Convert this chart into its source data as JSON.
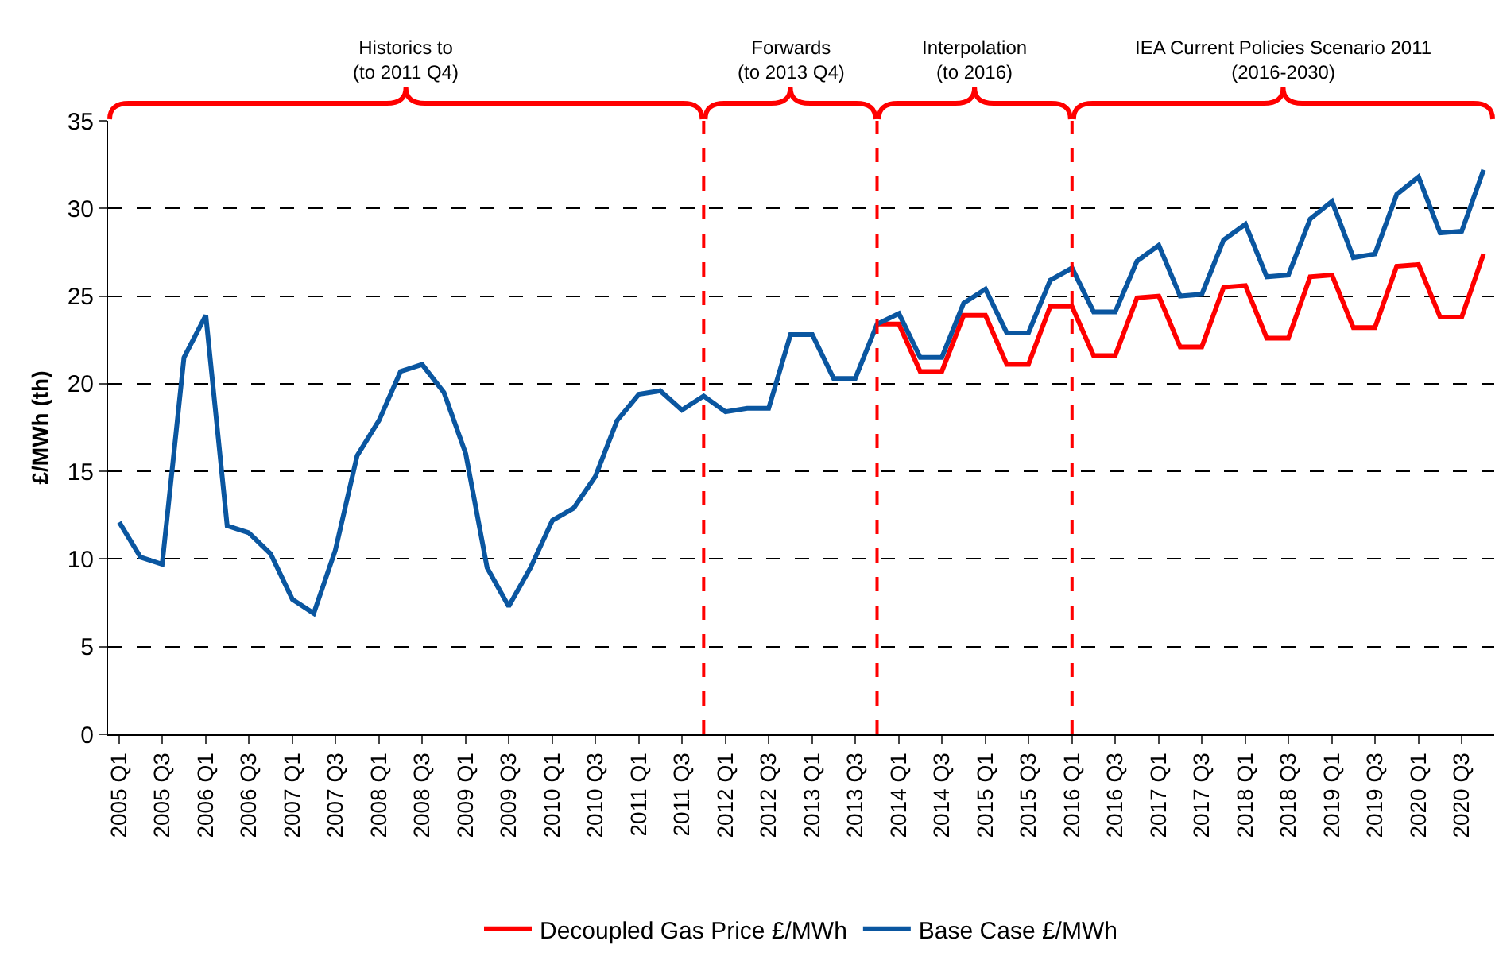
{
  "chart_data": {
    "type": "line",
    "ylabel": "£/MWh (th)",
    "x": [
      "2005-01",
      "2005-04",
      "2005-07",
      "2005-10",
      "2006-01",
      "2006-04",
      "2006-07",
      "2006-10",
      "2007-01",
      "2007-04",
      "2007-07",
      "2007-10",
      "2008-01",
      "2008-04",
      "2008-07",
      "2008-10",
      "2009-01",
      "2009-04",
      "2009-07",
      "2009-10",
      "2010-01",
      "2010-04",
      "2010-07",
      "2010-10",
      "2011-01",
      "2011-04",
      "2011-07",
      "2011-10",
      "2012-01",
      "2012-04",
      "2012-07",
      "2012-10",
      "2013-01",
      "2013-04",
      "2013-07",
      "2013-10",
      "2014-01",
      "2014-04",
      "2014-07",
      "2014-10",
      "2015-01",
      "2015-04",
      "2015-07",
      "2015-10",
      "2016-01",
      "2016-04",
      "2016-07",
      "2016-10",
      "2017-01",
      "2017-04",
      "2017-07",
      "2017-10",
      "2018-01",
      "2018-04",
      "2018-07",
      "2018-10",
      "2019-01",
      "2019-04",
      "2019-07",
      "2019-10",
      "2020-01",
      "2020-04",
      "2020-07",
      "2020-10"
    ],
    "series": [
      {
        "name": "Decoupled Gas Price £/MWh",
        "color": "#ff0000",
        "values": [
          null,
          null,
          null,
          null,
          null,
          null,
          null,
          null,
          null,
          null,
          null,
          null,
          null,
          null,
          null,
          null,
          null,
          null,
          null,
          null,
          null,
          null,
          null,
          null,
          null,
          null,
          null,
          null,
          null,
          null,
          null,
          null,
          null,
          null,
          null,
          23.4,
          23.4,
          20.7,
          20.7,
          23.9,
          23.9,
          21.1,
          21.1,
          24.4,
          24.4,
          21.6,
          21.6,
          24.9,
          25.0,
          22.1,
          22.1,
          25.5,
          25.6,
          22.6,
          22.6,
          26.1,
          26.2,
          23.2,
          23.2,
          26.7,
          26.8,
          23.8,
          23.8,
          27.4
        ]
      },
      {
        "name": "Base Case £/MWh",
        "color": "#0a56a0",
        "values": [
          12.1,
          10.1,
          9.7,
          21.5,
          23.9,
          11.9,
          11.5,
          10.3,
          7.7,
          6.9,
          10.5,
          15.9,
          17.9,
          20.7,
          21.1,
          19.5,
          16.0,
          9.5,
          7.3,
          9.5,
          12.2,
          12.9,
          14.7,
          17.9,
          19.4,
          19.6,
          18.5,
          19.3,
          18.4,
          18.6,
          18.6,
          22.8,
          22.8,
          20.3,
          20.3,
          23.4,
          24.0,
          21.5,
          21.5,
          24.6,
          25.4,
          22.9,
          22.9,
          25.9,
          26.6,
          24.1,
          24.1,
          27.0,
          27.9,
          25.0,
          25.1,
          28.2,
          29.1,
          26.1,
          26.2,
          29.4,
          30.4,
          27.2,
          27.4,
          30.8,
          31.8,
          28.6,
          28.7,
          32.2
        ]
      }
    ],
    "xlim": [
      "2004-11-15",
      "2020-11-15"
    ],
    "xticks": [
      {
        "value": "2005-01",
        "label": "2005 Q1"
      },
      {
        "value": "2005-07",
        "label": "2005 Q3"
      },
      {
        "value": "2006-01",
        "label": "2006 Q1"
      },
      {
        "value": "2006-07",
        "label": "2006 Q3"
      },
      {
        "value": "2007-01",
        "label": "2007 Q1"
      },
      {
        "value": "2007-07",
        "label": "2007 Q3"
      },
      {
        "value": "2008-01",
        "label": "2008 Q1"
      },
      {
        "value": "2008-07",
        "label": "2008 Q3"
      },
      {
        "value": "2009-01",
        "label": "2009 Q1"
      },
      {
        "value": "2009-07",
        "label": "2009 Q3"
      },
      {
        "value": "2010-01",
        "label": "2010 Q1"
      },
      {
        "value": "2010-07",
        "label": "2010 Q3"
      },
      {
        "value": "2011-01",
        "label": "2011 Q1"
      },
      {
        "value": "2011-07",
        "label": "2011 Q3"
      },
      {
        "value": "2012-01",
        "label": "2012 Q1"
      },
      {
        "value": "2012-07",
        "label": "2012 Q3"
      },
      {
        "value": "2013-01",
        "label": "2013 Q1"
      },
      {
        "value": "2013-07",
        "label": "2013 Q3"
      },
      {
        "value": "2014-01",
        "label": "2014 Q1"
      },
      {
        "value": "2014-07",
        "label": "2014 Q3"
      },
      {
        "value": "2015-01",
        "label": "2015 Q1"
      },
      {
        "value": "2015-07",
        "label": "2015 Q3"
      },
      {
        "value": "2016-01",
        "label": "2016 Q1"
      },
      {
        "value": "2016-07",
        "label": "2016 Q3"
      },
      {
        "value": "2017-01",
        "label": "2017 Q1"
      },
      {
        "value": "2017-07",
        "label": "2017 Q3"
      },
      {
        "value": "2018-01",
        "label": "2018 Q1"
      },
      {
        "value": "2018-07",
        "label": "2018 Q3"
      },
      {
        "value": "2019-01",
        "label": "2019 Q1"
      },
      {
        "value": "2019-07",
        "label": "2019 Q3"
      },
      {
        "value": "2020-01",
        "label": "2020 Q1"
      },
      {
        "value": "2020-07",
        "label": "2020 Q3"
      }
    ],
    "ylim": [
      0,
      35
    ],
    "yticks": [
      0,
      5,
      10,
      15,
      20,
      25,
      30,
      35
    ],
    "grid": "y",
    "legend": "bottom",
    "marker": "none",
    "line_style": "solid",
    "ref_lines": [
      {
        "axis": "x",
        "value": "2011-10",
        "color": "#ff0000",
        "line_style": "dashed"
      },
      {
        "axis": "x",
        "value": "2013-10",
        "color": "#ff0000",
        "line_style": "dashed"
      },
      {
        "axis": "x",
        "value": "2016-01",
        "color": "#ff0000",
        "line_style": "dashed"
      }
    ],
    "annotations": [
      "Historics to\n(to 2011 Q4)",
      "Forwards\n(to 2013 Q4)",
      "Interpolation\n(to 2016)",
      "IEA Current Policies Scenario 2011\n(2016-2030)"
    ]
  }
}
